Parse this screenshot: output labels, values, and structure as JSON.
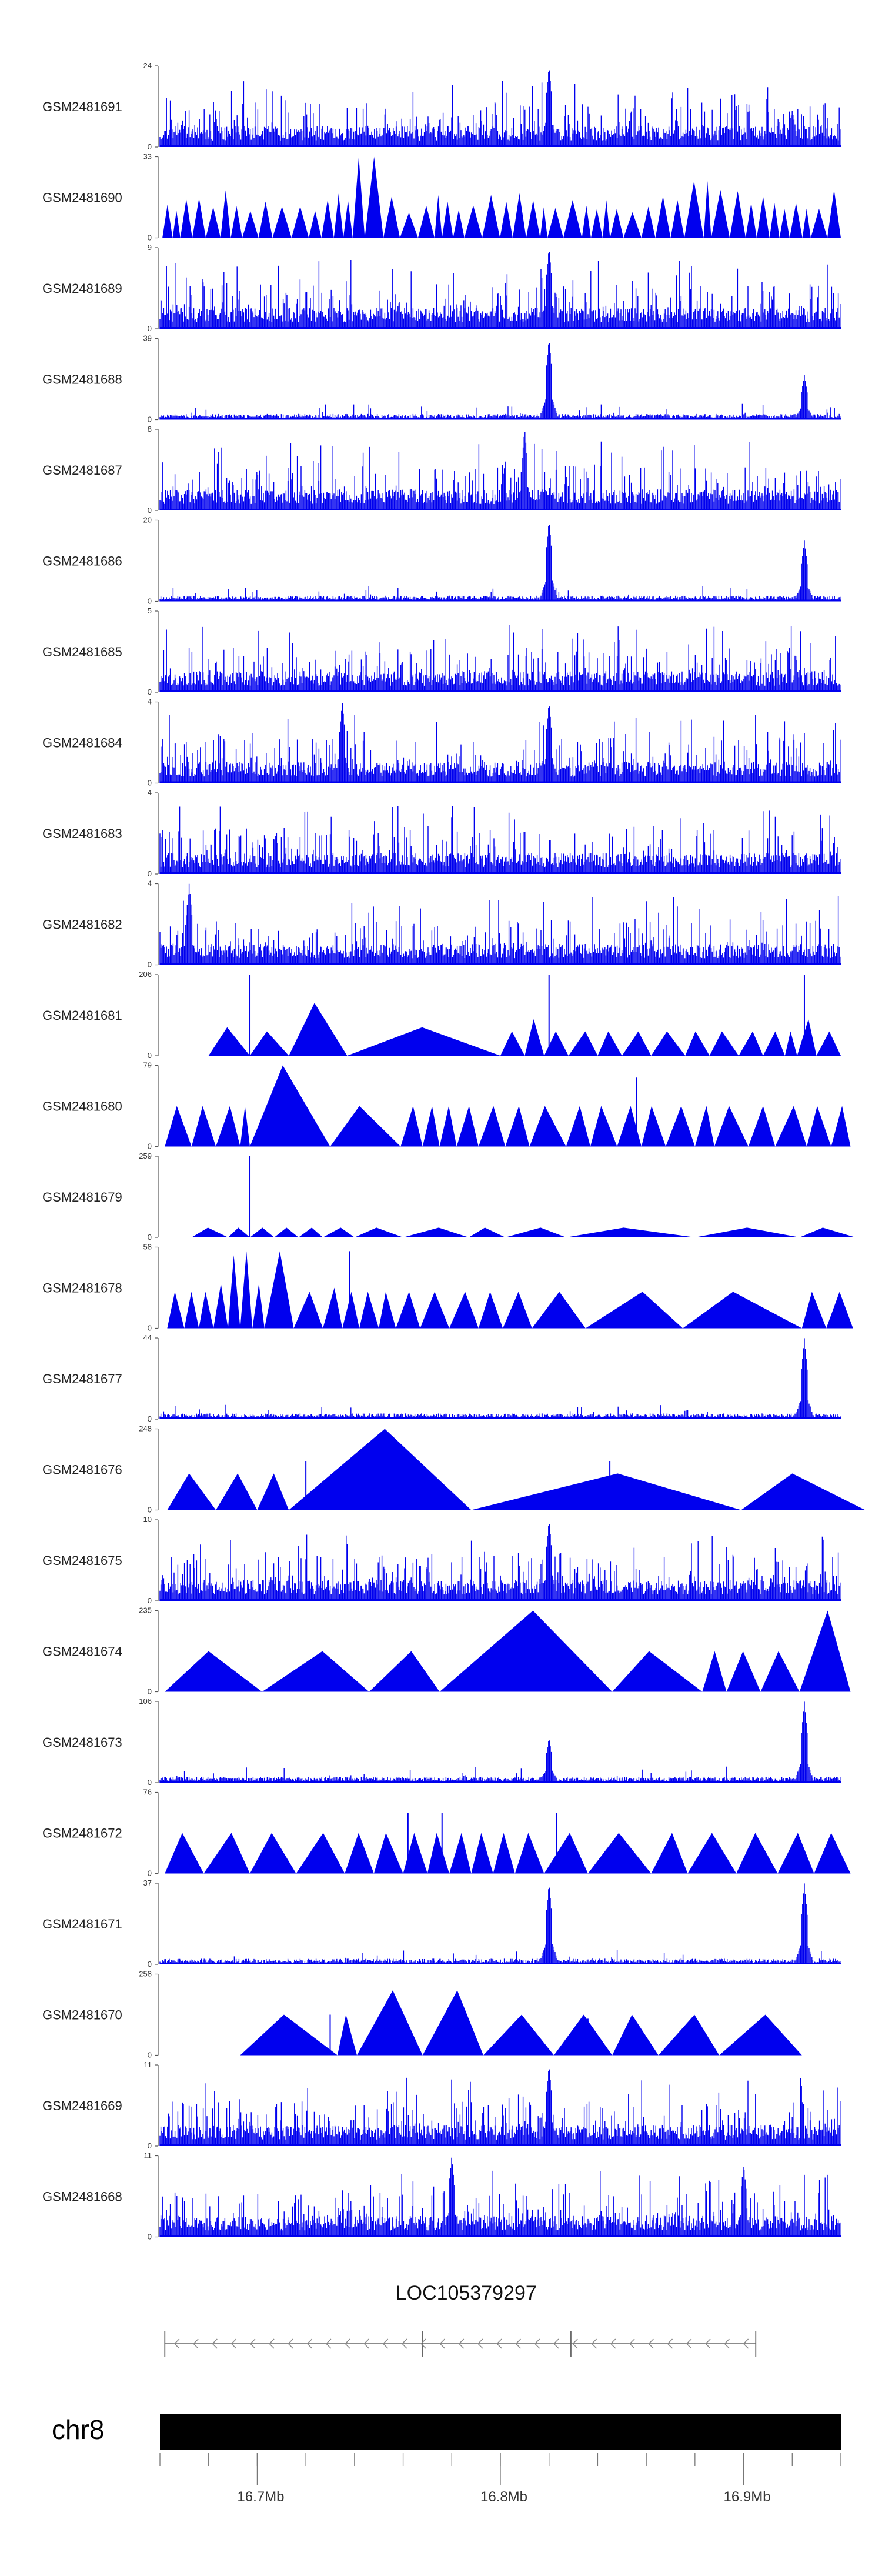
{
  "chart_data": {
    "type": "area",
    "title": "",
    "xlabel": "",
    "ylabel": "",
    "xlim": [
      16.66,
      16.94
    ],
    "unit": "Mb",
    "series_color": "#0000EE",
    "tracks": [
      {
        "name": "GSM2481691",
        "ymax": 24,
        "style": "dense",
        "peaks": [
          [
            16.82,
            1.0
          ],
          [
            16.92,
            0.45
          ]
        ],
        "seed": 11
      },
      {
        "name": "GSM2481690",
        "ymax": 33,
        "style": "triangles-dense",
        "peaks": [
          [
            16.745,
            1.0
          ],
          [
            16.88,
            0.7
          ]
        ],
        "seed": 12
      },
      {
        "name": "GSM2481689",
        "ymax": 9,
        "style": "dense",
        "peaks": [
          [
            16.82,
            1.0
          ]
        ],
        "seed": 13
      },
      {
        "name": "GSM2481688",
        "ymax": 39,
        "style": "dense-low",
        "peaks": [
          [
            16.82,
            1.0
          ],
          [
            16.925,
            0.55
          ]
        ],
        "seed": 14
      },
      {
        "name": "GSM2481687",
        "ymax": 8,
        "style": "dense",
        "peaks": [
          [
            16.81,
            1.0
          ]
        ],
        "seed": 15
      },
      {
        "name": "GSM2481686",
        "ymax": 20,
        "style": "dense-low",
        "peaks": [
          [
            16.82,
            1.0
          ],
          [
            16.925,
            0.75
          ]
        ],
        "seed": 16
      },
      {
        "name": "GSM2481685",
        "ymax": 5,
        "style": "dense",
        "peaks": [],
        "seed": 17
      },
      {
        "name": "GSM2481684",
        "ymax": 4,
        "style": "dense",
        "peaks": [
          [
            16.735,
            1.0
          ],
          [
            16.82,
            1.0
          ]
        ],
        "seed": 18
      },
      {
        "name": "GSM2481683",
        "ymax": 4,
        "style": "dense",
        "peaks": [],
        "seed": 19
      },
      {
        "name": "GSM2481682",
        "ymax": 4,
        "style": "dense",
        "peaks": [
          [
            16.672,
            1.0
          ]
        ],
        "seed": 20
      },
      {
        "name": "GSM2481681",
        "ymax": 206,
        "style": "triangles",
        "triangles": [
          [
            16.68,
            16.697,
            0.35
          ],
          [
            16.697,
            16.713,
            0.3
          ],
          [
            16.713,
            16.737,
            0.65
          ],
          [
            16.737,
            16.8,
            0.35
          ],
          [
            16.8,
            16.81,
            0.3
          ],
          [
            16.81,
            16.818,
            0.45
          ],
          [
            16.818,
            16.828,
            0.3
          ],
          [
            16.828,
            16.84,
            0.3
          ],
          [
            16.84,
            16.85,
            0.3
          ],
          [
            16.85,
            16.862,
            0.3
          ],
          [
            16.862,
            16.876,
            0.3
          ],
          [
            16.876,
            16.886,
            0.3
          ],
          [
            16.886,
            16.898,
            0.3
          ],
          [
            16.898,
            16.908,
            0.3
          ],
          [
            16.908,
            16.917,
            0.3
          ],
          [
            16.917,
            16.922,
            0.3
          ],
          [
            16.922,
            16.93,
            0.45
          ],
          [
            16.93,
            16.94,
            0.3
          ]
        ],
        "spikes": [
          [
            16.697,
            1.0
          ],
          [
            16.82,
            1.0
          ],
          [
            16.925,
            1.0
          ]
        ],
        "seed": 21
      },
      {
        "name": "GSM2481680",
        "ymax": 79,
        "style": "triangles",
        "triangles": [
          [
            16.662,
            16.673,
            0.5
          ],
          [
            16.673,
            16.683,
            0.5
          ],
          [
            16.683,
            16.693,
            0.5
          ],
          [
            16.693,
            16.697,
            0.5
          ],
          [
            16.697,
            16.73,
            1.0
          ],
          [
            16.73,
            16.759,
            0.5
          ],
          [
            16.759,
            16.768,
            0.5
          ],
          [
            16.768,
            16.775,
            0.5
          ],
          [
            16.775,
            16.782,
            0.5
          ],
          [
            16.782,
            16.791,
            0.5
          ],
          [
            16.791,
            16.802,
            0.5
          ],
          [
            16.802,
            16.812,
            0.5
          ],
          [
            16.812,
            16.827,
            0.5
          ],
          [
            16.827,
            16.837,
            0.5
          ],
          [
            16.837,
            16.848,
            0.5
          ],
          [
            16.848,
            16.858,
            0.5
          ],
          [
            16.858,
            16.868,
            0.5
          ],
          [
            16.868,
            16.88,
            0.5
          ],
          [
            16.88,
            16.888,
            0.5
          ],
          [
            16.888,
            16.902,
            0.5
          ],
          [
            16.902,
            16.913,
            0.5
          ],
          [
            16.913,
            16.926,
            0.5
          ],
          [
            16.926,
            16.936,
            0.5
          ],
          [
            16.936,
            16.944,
            0.5
          ]
        ],
        "spikes": [
          [
            16.856,
            0.85
          ]
        ],
        "seed": 22
      },
      {
        "name": "GSM2481679",
        "ymax": 259,
        "style": "triangles",
        "triangles": [
          [
            16.673,
            16.688,
            0.12
          ],
          [
            16.688,
            16.697,
            0.12
          ],
          [
            16.697,
            16.707,
            0.12
          ],
          [
            16.707,
            16.717,
            0.12
          ],
          [
            16.717,
            16.727,
            0.12
          ],
          [
            16.727,
            16.74,
            0.12
          ],
          [
            16.74,
            16.76,
            0.12
          ],
          [
            16.76,
            16.787,
            0.12
          ],
          [
            16.787,
            16.802,
            0.12
          ],
          [
            16.802,
            16.827,
            0.12
          ],
          [
            16.827,
            16.88,
            0.12
          ],
          [
            16.88,
            16.923,
            0.12
          ],
          [
            16.923,
            16.946,
            0.12
          ]
        ],
        "spikes": [
          [
            16.697,
            1.0
          ]
        ],
        "seed": 23
      },
      {
        "name": "GSM2481678",
        "ymax": 58,
        "style": "triangles",
        "triangles": [
          [
            16.663,
            16.67,
            0.45
          ],
          [
            16.67,
            16.676,
            0.45
          ],
          [
            16.676,
            16.682,
            0.45
          ],
          [
            16.682,
            16.688,
            0.55
          ],
          [
            16.688,
            16.693,
            0.9
          ],
          [
            16.693,
            16.698,
            0.95
          ],
          [
            16.698,
            16.703,
            0.55
          ],
          [
            16.703,
            16.715,
            0.95
          ],
          [
            16.715,
            16.727,
            0.45
          ],
          [
            16.727,
            16.735,
            0.5
          ],
          [
            16.735,
            16.742,
            0.45
          ],
          [
            16.742,
            16.75,
            0.45
          ],
          [
            16.75,
            16.757,
            0.45
          ],
          [
            16.757,
            16.767,
            0.45
          ],
          [
            16.767,
            16.779,
            0.45
          ],
          [
            16.779,
            16.791,
            0.45
          ],
          [
            16.791,
            16.801,
            0.45
          ],
          [
            16.801,
            16.813,
            0.45
          ],
          [
            16.813,
            16.835,
            0.45
          ],
          [
            16.835,
            16.875,
            0.45
          ],
          [
            16.875,
            16.924,
            0.45
          ],
          [
            16.924,
            16.934,
            0.45
          ],
          [
            16.934,
            16.945,
            0.45
          ]
        ],
        "spikes": [
          [
            16.738,
            0.95
          ]
        ],
        "seed": 24
      },
      {
        "name": "GSM2481677",
        "ymax": 44,
        "style": "dense-low",
        "peaks": [
          [
            16.925,
            1.0
          ]
        ],
        "seed": 25
      },
      {
        "name": "GSM2481676",
        "ymax": 248,
        "style": "triangles",
        "triangles": [
          [
            16.663,
            16.683,
            0.45
          ],
          [
            16.683,
            16.7,
            0.45
          ],
          [
            16.7,
            16.713,
            0.45
          ],
          [
            16.713,
            16.788,
            1.0
          ],
          [
            16.788,
            16.899,
            0.45
          ],
          [
            16.899,
            16.95,
            0.45
          ]
        ],
        "spikes": [
          [
            16.72,
            0.6
          ],
          [
            16.845,
            0.6
          ]
        ],
        "seed": 26
      },
      {
        "name": "GSM2481675",
        "ymax": 10,
        "style": "dense",
        "peaks": [
          [
            16.82,
            1.0
          ]
        ],
        "seed": 27
      },
      {
        "name": "GSM2481674",
        "ymax": 235,
        "style": "triangles",
        "triangles": [
          [
            16.662,
            16.702,
            0.5
          ],
          [
            16.702,
            16.746,
            0.5
          ],
          [
            16.746,
            16.775,
            0.5
          ],
          [
            16.775,
            16.846,
            1.0
          ],
          [
            16.846,
            16.883,
            0.5
          ],
          [
            16.883,
            16.893,
            0.5
          ],
          [
            16.893,
            16.907,
            0.5
          ],
          [
            16.907,
            16.923,
            0.5
          ],
          [
            16.923,
            16.944,
            1.0
          ]
        ],
        "spikes": [],
        "seed": 28
      },
      {
        "name": "GSM2481673",
        "ymax": 106,
        "style": "dense-low",
        "peaks": [
          [
            16.82,
            0.55
          ],
          [
            16.925,
            1.0
          ]
        ],
        "seed": 29
      },
      {
        "name": "GSM2481672",
        "ymax": 76,
        "style": "triangles",
        "triangles": [
          [
            16.662,
            16.678,
            0.5
          ],
          [
            16.678,
            16.697,
            0.5
          ],
          [
            16.697,
            16.716,
            0.5
          ],
          [
            16.716,
            16.736,
            0.5
          ],
          [
            16.736,
            16.748,
            0.5
          ],
          [
            16.748,
            16.76,
            0.5
          ],
          [
            16.76,
            16.77,
            0.5
          ],
          [
            16.77,
            16.779,
            0.5
          ],
          [
            16.779,
            16.788,
            0.5
          ],
          [
            16.788,
            16.797,
            0.5
          ],
          [
            16.797,
            16.806,
            0.5
          ],
          [
            16.806,
            16.818,
            0.5
          ],
          [
            16.818,
            16.836,
            0.5
          ],
          [
            16.836,
            16.862,
            0.5
          ],
          [
            16.862,
            16.877,
            0.5
          ],
          [
            16.877,
            16.897,
            0.5
          ],
          [
            16.897,
            16.914,
            0.5
          ],
          [
            16.914,
            16.929,
            0.5
          ],
          [
            16.929,
            16.944,
            0.5
          ]
        ],
        "spikes": [
          [
            16.762,
            0.75
          ],
          [
            16.776,
            0.75
          ],
          [
            16.823,
            0.75
          ]
        ],
        "seed": 30
      },
      {
        "name": "GSM2481671",
        "ymax": 37,
        "style": "dense-low",
        "peaks": [
          [
            16.82,
            1.0
          ],
          [
            16.925,
            1.0
          ]
        ],
        "seed": 31
      },
      {
        "name": "GSM2481670",
        "ymax": 258,
        "style": "triangles",
        "triangles": [
          [
            16.693,
            16.733,
            0.5
          ],
          [
            16.733,
            16.741,
            0.5
          ],
          [
            16.741,
            16.768,
            0.8
          ],
          [
            16.768,
            16.793,
            0.8
          ],
          [
            16.793,
            16.822,
            0.5
          ],
          [
            16.822,
            16.846,
            0.5
          ],
          [
            16.846,
            16.865,
            0.5
          ],
          [
            16.865,
            16.89,
            0.5
          ],
          [
            16.89,
            16.924,
            0.5
          ]
        ],
        "spikes": [
          [
            16.73,
            0.5
          ],
          [
            16.836,
            0.45
          ]
        ],
        "seed": 32
      },
      {
        "name": "GSM2481669",
        "ymax": 11,
        "style": "dense",
        "peaks": [
          [
            16.82,
            1.0
          ]
        ],
        "seed": 33
      },
      {
        "name": "GSM2481668",
        "ymax": 11,
        "style": "dense",
        "peaks": [
          [
            16.78,
            1.0
          ],
          [
            16.9,
            0.9
          ]
        ],
        "seed": 34
      }
    ],
    "gene": {
      "name": "LOC105379297",
      "start": 16.662,
      "end": 16.905,
      "strand": "-",
      "exons": [
        16.768,
        16.829
      ]
    },
    "chromosome": {
      "name": "chr8"
    },
    "ticks": [
      {
        "value": 16.7,
        "label": "16.7Mb"
      },
      {
        "value": 16.8,
        "label": "16.8Mb"
      },
      {
        "value": 16.9,
        "label": "16.9Mb"
      }
    ],
    "minor_ticks": [
      16.66,
      16.68,
      16.7,
      16.72,
      16.74,
      16.76,
      16.78,
      16.8,
      16.82,
      16.84,
      16.86,
      16.88,
      16.9,
      16.92,
      16.94
    ]
  }
}
